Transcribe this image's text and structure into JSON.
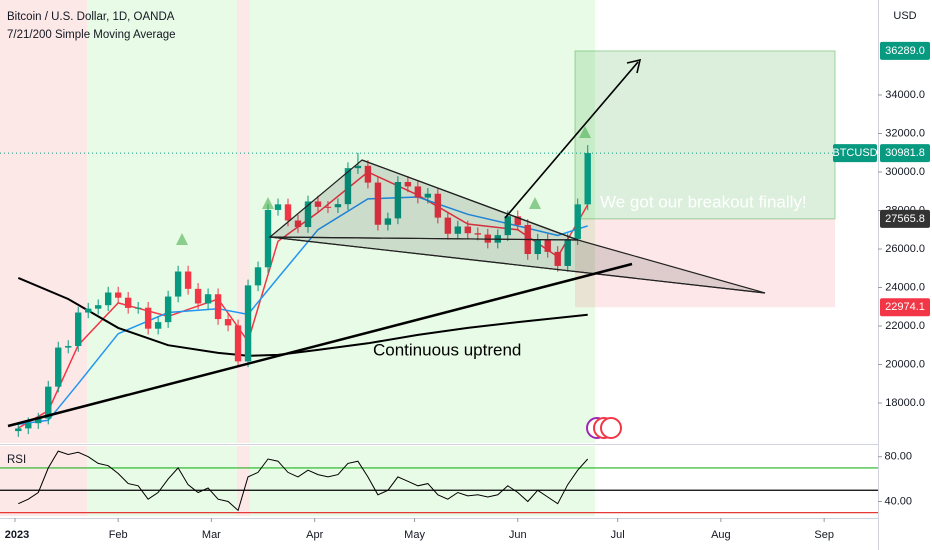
{
  "chart_data": {
    "type": "candlestick",
    "title": "Bitcoin / U.S. Dollar, 1D, OANDA",
    "subtitle": "7/21/200 Simple Moving Average",
    "currency": "USD",
    "up_color": "#089981",
    "down_color": "#f23645",
    "open": [
      16540,
      16680,
      16950,
      17190,
      18850,
      20880,
      20960,
      22700,
      22900,
      23080,
      23740,
      23470,
      22940,
      22950,
      21860,
      22200,
      23530,
      24830,
      23930,
      23170,
      23650,
      22360,
      22030,
      20160,
      24110,
      25050,
      28030,
      28320,
      27480,
      27140,
      28470,
      28190,
      28170,
      28330,
      30200,
      30320,
      29450,
      27260,
      27590,
      29480,
      29250,
      28670,
      28870,
      27630,
      26790,
      27170,
      26820,
      26750,
      26330,
      26720,
      27700,
      27250,
      25740,
      26490,
      25850,
      25120,
      26510,
      28320
    ],
    "high": [
      16980,
      17250,
      17490,
      19150,
      21180,
      21260,
      23000,
      23200,
      23380,
      24040,
      24040,
      23770,
      23250,
      23250,
      22500,
      23830,
      25130,
      25130,
      24230,
      23950,
      23950,
      22660,
      22330,
      24410,
      25350,
      28330,
      28620,
      28620,
      27780,
      28770,
      28770,
      28490,
      28630,
      30500,
      31000,
      30620,
      29750,
      27890,
      29780,
      29780,
      29550,
      29170,
      29170,
      27930,
      27470,
      27470,
      27120,
      27050,
      27020,
      28000,
      28000,
      27550,
      26790,
      26790,
      26150,
      26810,
      28620,
      31400
    ],
    "low": [
      16240,
      16380,
      16650,
      16890,
      18550,
      20580,
      20660,
      22400,
      22600,
      22780,
      23170,
      22640,
      22640,
      21560,
      21560,
      21900,
      23230,
      23630,
      22870,
      22870,
      22060,
      21730,
      19860,
      19860,
      23810,
      24750,
      27730,
      27180,
      26840,
      26840,
      27890,
      27870,
      27870,
      28030,
      29900,
      29150,
      26960,
      26960,
      27290,
      28950,
      28370,
      28370,
      27330,
      26490,
      26490,
      26520,
      26450,
      26030,
      26030,
      26420,
      26950,
      25440,
      25440,
      25550,
      24820,
      24820,
      26210,
      28020
    ],
    "close": [
      16680,
      16950,
      17190,
      18850,
      20880,
      20960,
      22700,
      22900,
      23080,
      23740,
      23470,
      22940,
      22950,
      21860,
      22200,
      23530,
      24830,
      23930,
      23170,
      23650,
      22360,
      22030,
      20160,
      24110,
      25050,
      28030,
      28320,
      27480,
      27140,
      28470,
      28190,
      28170,
      28330,
      30200,
      30320,
      29450,
      27260,
      27590,
      29480,
      29250,
      28670,
      28870,
      27630,
      26790,
      27170,
      26820,
      26750,
      26330,
      26720,
      27700,
      27250,
      25740,
      26490,
      25850,
      25120,
      26510,
      28320,
      30981.8
    ],
    "lines": [
      {
        "color": "#f23645",
        "x": [
          0,
          3,
          6,
          10,
          15,
          20,
          23,
          26,
          30,
          35,
          40,
          45,
          50,
          54,
          57
        ],
        "values": [
          16700,
          17600,
          21000,
          23200,
          22500,
          23400,
          21200,
          26400,
          27900,
          30000,
          28800,
          27300,
          27000,
          25600,
          28300
        ]
      },
      {
        "color": "#2196f3",
        "x": [
          0,
          3,
          6,
          10,
          15,
          20,
          23,
          26,
          30,
          35,
          40,
          45,
          50,
          54,
          57
        ],
        "values": [
          16900,
          17100,
          19000,
          21600,
          22700,
          22900,
          22600,
          24500,
          27000,
          28600,
          28700,
          27800,
          27200,
          26700,
          27200
        ]
      },
      {
        "color": "#000000",
        "x": [
          0,
          5,
          10,
          15,
          20,
          23,
          26,
          30,
          35,
          40,
          45,
          50,
          57
        ],
        "values": [
          24500,
          23400,
          21900,
          21000,
          20600,
          20450,
          20500,
          20760,
          21100,
          21540,
          21900,
          22200,
          22580
        ]
      }
    ],
    "xlim": [
      -1.83,
      86.06
    ],
    "xticks": [
      {
        "value": -0.33,
        "label": "2023"
      },
      {
        "value": 10,
        "label": "Feb"
      },
      {
        "value": 19.33,
        "label": "Mar"
      },
      {
        "value": 29.67,
        "label": "Apr"
      },
      {
        "value": 39.67,
        "label": "May"
      },
      {
        "value": 50,
        "label": "Jun"
      },
      {
        "value": 60,
        "label": "Jul"
      },
      {
        "value": 70.33,
        "label": "Aug"
      },
      {
        "value": 80.67,
        "label": "Sep"
      }
    ],
    "ylim": [
      15922,
      38935
    ],
    "yticks": [
      {
        "value": 18000,
        "label": "18000.0"
      },
      {
        "value": 20000,
        "label": "20000.0"
      },
      {
        "value": 22000,
        "label": "22000.0"
      },
      {
        "value": 24000,
        "label": "24000.0"
      },
      {
        "value": 26000,
        "label": "26000.0"
      },
      {
        "value": 28000,
        "label": "28000.0"
      },
      {
        "value": 30000,
        "label": "30000.0"
      },
      {
        "value": 32000,
        "label": "32000.0"
      },
      {
        "value": 34000,
        "label": "34000.0"
      }
    ],
    "position": {
      "target": {
        "value": 36289,
        "label": "36289.0"
      },
      "entry": {
        "value": 27565.8,
        "label": "27565.8"
      },
      "stop": {
        "value": 22974.1,
        "label": "22974.1"
      }
    },
    "last_price": {
      "name": "BTCUSD",
      "value": 30981.8
    },
    "annotations": [
      "We got our breakout finally!",
      "Continuous uptrend"
    ],
    "rsi": {
      "label": "RSI",
      "color": "#000000",
      "values": [
        38,
        42,
        48,
        70,
        85,
        82,
        84,
        80,
        74,
        72,
        65,
        56,
        54,
        42,
        48,
        60,
        70,
        55,
        48,
        52,
        42,
        40,
        32,
        62,
        66,
        78,
        76,
        66,
        62,
        68,
        64,
        62,
        64,
        74,
        76,
        62,
        46,
        50,
        62,
        58,
        54,
        56,
        46,
        42,
        48,
        45,
        46,
        44,
        46,
        54,
        48,
        40,
        50,
        44,
        38,
        55,
        68,
        78
      ],
      "ylim": [
        27,
        89.6
      ],
      "yticks": [
        {
          "value": 80,
          "label": "80.00"
        },
        {
          "value": 40,
          "label": "40.00"
        }
      ],
      "levels": [
        70,
        50,
        30
      ],
      "level_colors": [
        "#22b322",
        "#000000",
        "#e53935"
      ]
    }
  }
}
